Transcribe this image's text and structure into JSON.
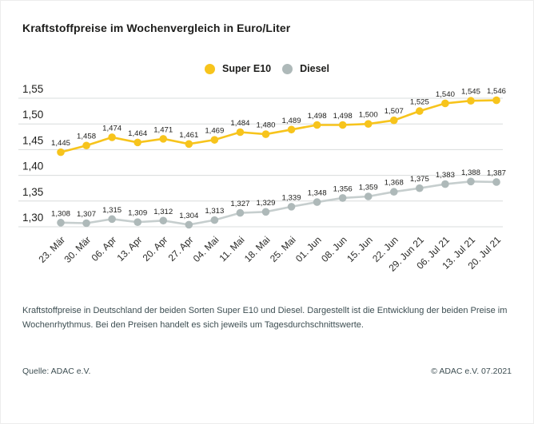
{
  "title": "Kraftstoffpreise im Wochenvergleich in Euro/Liter",
  "legend": {
    "items": [
      {
        "label": "Super E10",
        "color": "#F7C41C"
      },
      {
        "label": "Diesel",
        "color": "#AEB9B9"
      }
    ]
  },
  "chart_data": {
    "type": "line",
    "title": "Kraftstoffpreise im Wochenvergleich in Euro/Liter",
    "unit": "Euro/Liter",
    "categories": [
      "23. Mär",
      "30. Mär",
      "06. Apr",
      "13. Apr",
      "20. Apr",
      "27. Apr",
      "04. Mai",
      "11. Mai",
      "18. Mai",
      "25. Mai",
      "01. Jun",
      "08. Jun",
      "15. Jun",
      "22. Jun",
      "29. Jun 21",
      "06. Jul 21",
      "13. Jul 21",
      "20. Jul 21"
    ],
    "series": [
      {
        "name": "Super E10",
        "color": "#F7C41C",
        "line_color": "#F7C41C",
        "values": [
          1.445,
          1.458,
          1.474,
          1.464,
          1.471,
          1.461,
          1.469,
          1.484,
          1.48,
          1.489,
          1.498,
          1.498,
          1.5,
          1.507,
          1.525,
          1.54,
          1.545,
          1.546
        ]
      },
      {
        "name": "Diesel",
        "color": "#AEB9B9",
        "line_color": "#C6CECE",
        "values": [
          1.308,
          1.307,
          1.315,
          1.309,
          1.312,
          1.304,
          1.313,
          1.327,
          1.329,
          1.339,
          1.348,
          1.356,
          1.359,
          1.368,
          1.375,
          1.383,
          1.388,
          1.387
        ]
      }
    ],
    "y_ticks": [
      1.55,
      1.5,
      1.45,
      1.4,
      1.35,
      1.3
    ],
    "ylim": [
      1.3,
      1.55
    ],
    "grid": true,
    "legend_position": "top-center",
    "value_labels": true,
    "xlabel": "",
    "ylabel": ""
  },
  "footnote": "Kraftstoffpreise in Deutschland der beiden Sorten Super E10 und Diesel. Dargestellt ist die Entwicklung der beiden Preise im Wochenrhythmus. Bei den Preisen handelt es sich jeweils um Tagesdurchschnittswerte.",
  "source_left": "Quelle: ADAC e.V.",
  "source_right": "© ADAC e.V. 07.2021",
  "colors": {
    "grid": "#D8DCDC",
    "text": "#1D1D1B",
    "muted_text": "#3D4E52",
    "background": "#FFFFFF"
  }
}
